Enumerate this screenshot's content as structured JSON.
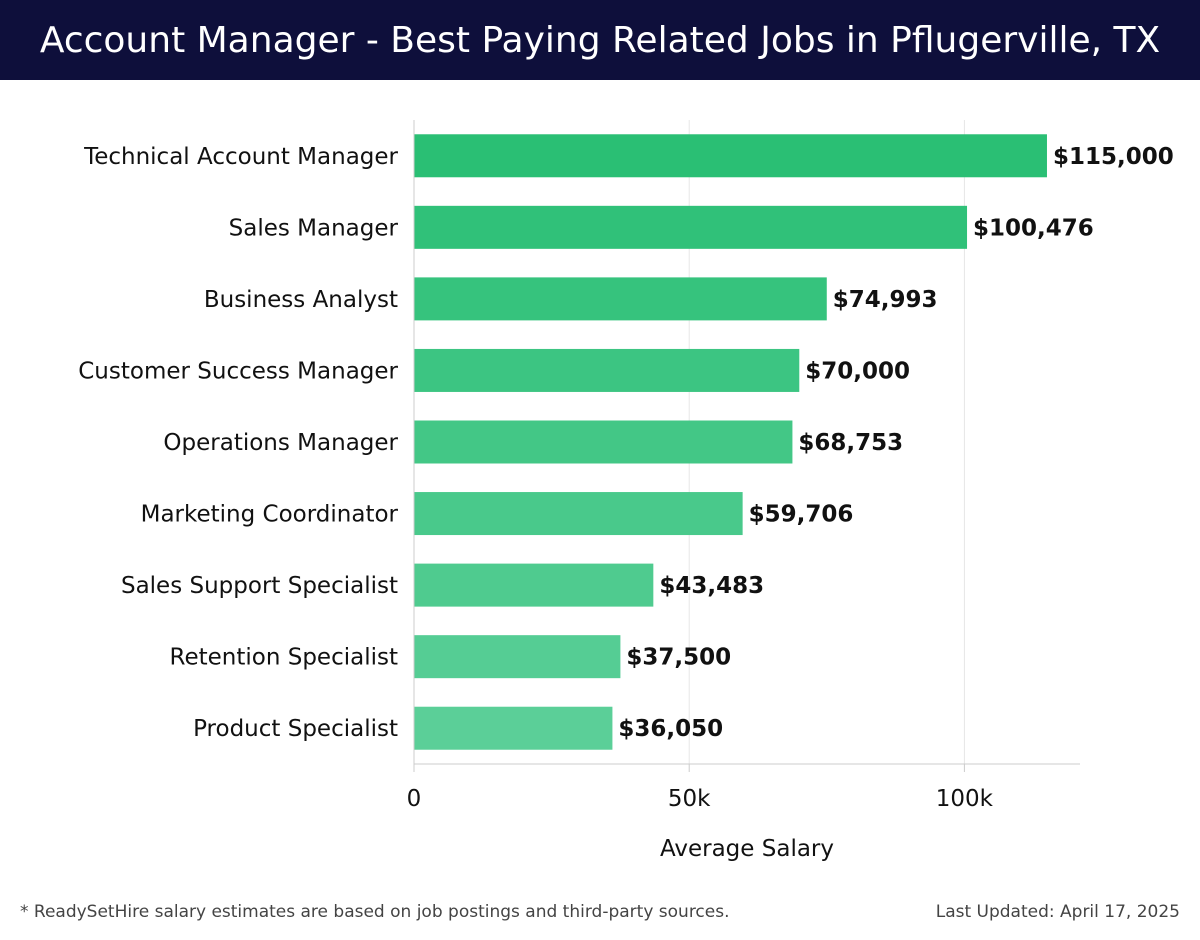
{
  "header": {
    "title": "Account Manager - Best Paying Related Jobs in Pflugerville, TX"
  },
  "footer": {
    "note": "* ReadySetHire salary estimates are based on job postings and third-party sources.",
    "updated": "Last Updated: April 17, 2025"
  },
  "colors": {
    "header_bg": "#0e0f3b",
    "bar_dark": "#2abf74",
    "bar_light": "#5bcf98"
  },
  "chart_data": {
    "type": "bar",
    "orientation": "horizontal",
    "title": "Account Manager - Best Paying Related Jobs in Pflugerville, TX",
    "xlabel": "Average Salary",
    "ylabel": "",
    "xlim": [
      0,
      121000
    ],
    "xticks": [
      0,
      50000,
      100000
    ],
    "xtick_labels": [
      "0",
      "50k",
      "100k"
    ],
    "grid": true,
    "categories": [
      "Technical Account Manager",
      "Sales Manager",
      "Business Analyst",
      "Customer Success Manager",
      "Operations Manager",
      "Marketing Coordinator",
      "Sales Support Specialist",
      "Retention Specialist",
      "Product Specialist"
    ],
    "values": [
      115000,
      100476,
      74993,
      70000,
      68753,
      59706,
      43483,
      37500,
      36050
    ],
    "value_labels": [
      "$115,000",
      "$100,476",
      "$74,993",
      "$70,000",
      "$68,753",
      "$59,706",
      "$43,483",
      "$37,500",
      "$36,050"
    ]
  }
}
